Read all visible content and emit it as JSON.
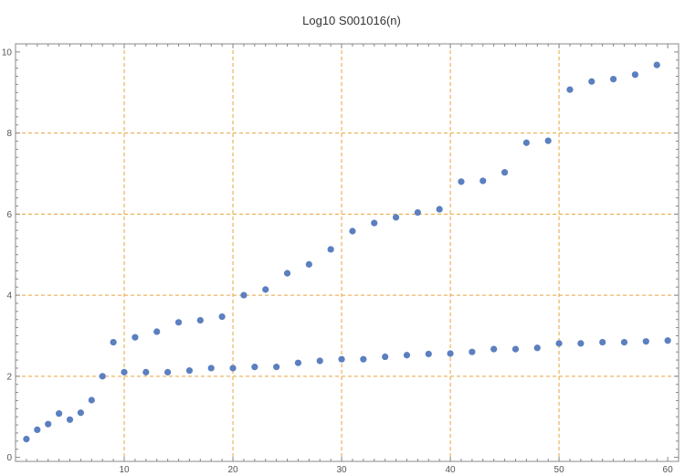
{
  "chart_data": {
    "type": "scatter",
    "title": "Log10 S001016(n)",
    "xlabel": "",
    "ylabel": "",
    "xlim": [
      0,
      61
    ],
    "ylim": [
      -0.1,
      10.2
    ],
    "xticks": [
      10,
      20,
      30,
      40,
      50,
      60
    ],
    "yticks": [
      0,
      2,
      4,
      6,
      8,
      10
    ],
    "grid": true,
    "grid_x": [
      10,
      20,
      30,
      40,
      50
    ],
    "grid_y": [
      2,
      4,
      6,
      8
    ],
    "colors": {
      "points": "#5b7fbf",
      "grid": "#e8a33d",
      "axis": "#888888"
    },
    "series": [
      {
        "x": [
          1,
          2,
          3,
          4,
          5,
          6,
          7,
          8,
          9,
          10,
          11,
          12,
          13,
          14,
          15,
          16,
          17,
          18,
          19,
          20,
          21,
          22,
          23,
          24,
          25,
          26,
          27,
          28,
          29,
          30,
          31,
          32,
          33,
          34,
          35,
          36,
          37,
          38,
          39,
          40,
          41,
          42,
          43,
          44,
          45,
          46,
          47,
          48,
          49,
          50,
          51,
          52,
          53,
          54,
          55,
          56,
          57,
          58,
          59,
          60
        ],
        "y": [
          0.45,
          0.68,
          0.82,
          1.08,
          0.93,
          1.1,
          1.41,
          2.0,
          2.84,
          2.1,
          2.96,
          2.1,
          3.1,
          2.1,
          3.33,
          2.14,
          3.38,
          2.2,
          3.47,
          2.2,
          4.0,
          2.23,
          4.14,
          2.23,
          4.54,
          2.33,
          4.76,
          2.38,
          5.13,
          2.42,
          5.58,
          2.42,
          5.78,
          2.48,
          5.92,
          2.52,
          6.04,
          2.55,
          6.12,
          2.56,
          6.8,
          2.6,
          6.82,
          2.67,
          7.03,
          2.67,
          7.76,
          2.7,
          7.81,
          2.81,
          9.07,
          2.81,
          9.27,
          2.84,
          9.33,
          2.84,
          9.44,
          2.86,
          9.68,
          2.88
        ]
      }
    ]
  }
}
